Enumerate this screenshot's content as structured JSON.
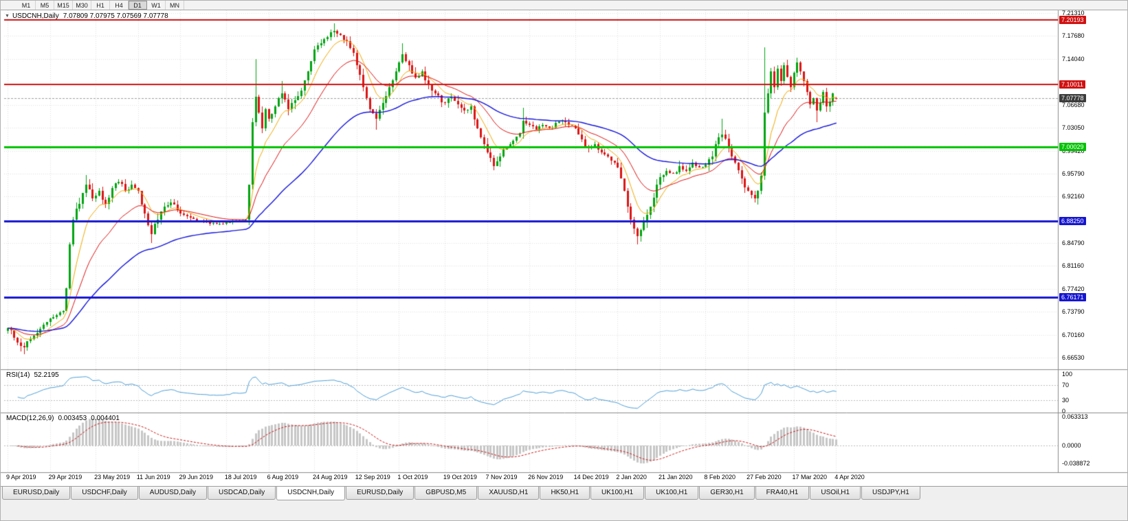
{
  "toolbar": {
    "timeframes": [
      {
        "label": "M1",
        "active": false
      },
      {
        "label": "M5",
        "active": false
      },
      {
        "label": "M15",
        "active": false
      },
      {
        "label": "M30",
        "active": false
      },
      {
        "label": "H1",
        "active": false
      },
      {
        "label": "H4",
        "active": false
      },
      {
        "label": "D1",
        "active": true
      },
      {
        "label": "W1",
        "active": false
      },
      {
        "label": "MN",
        "active": false
      }
    ]
  },
  "chart": {
    "title": {
      "symbol": "USDCNH,Daily",
      "ohlc": "7.07809 7.07975 7.07569 7.07778"
    },
    "price_axis": {
      "labels": [
        {
          "text": "7.21310",
          "price": 7.2131
        },
        {
          "text": "7.17680",
          "price": 7.1768
        },
        {
          "text": "7.14040",
          "price": 7.1404
        },
        {
          "text": "7.06680",
          "price": 7.0668
        },
        {
          "text": "7.03050",
          "price": 7.0305
        },
        {
          "text": "6.99420",
          "price": 6.9942
        },
        {
          "text": "6.95790",
          "price": 6.9579
        },
        {
          "text": "6.92160",
          "price": 6.9216
        },
        {
          "text": "6.84790",
          "price": 6.8479
        },
        {
          "text": "6.81160",
          "price": 6.8116
        },
        {
          "text": "6.77420",
          "price": 6.7742
        },
        {
          "text": "6.73790",
          "price": 6.7379
        },
        {
          "text": "6.70160",
          "price": 6.7016
        },
        {
          "text": "6.66530",
          "price": 6.6653
        }
      ]
    },
    "hlines": [
      {
        "label": "7.20193",
        "price": 7.20193,
        "color": "#d01111",
        "width": 2
      },
      {
        "label": "7.10011",
        "price": 7.10011,
        "color": "#d01111",
        "width": 2
      },
      {
        "label": "7.00029",
        "price": 7.00029,
        "color": "#00c300",
        "width": 3
      },
      {
        "label": "6.88250",
        "price": 6.8825,
        "color": "#1515d0",
        "width": 3
      },
      {
        "label": "6.76171",
        "price": 6.76171,
        "color": "#1515d0",
        "width": 3
      }
    ],
    "current_price": {
      "label": "7.07778",
      "price": 7.07778
    },
    "date_axis": {
      "labels": [
        {
          "text": "9 Apr 2019",
          "bar": 0
        },
        {
          "text": "29 Apr 2019",
          "bar": 13
        },
        {
          "text": "23 May 2019",
          "bar": 27
        },
        {
          "text": "11 Jun 2019",
          "bar": 40
        },
        {
          "text": "29 Jun 2019",
          "bar": 53
        },
        {
          "text": "18 Jul 2019",
          "bar": 67
        },
        {
          "text": "6 Aug 2019",
          "bar": 80
        },
        {
          "text": "24 Aug 2019",
          "bar": 94
        },
        {
          "text": "12 Sep 2019",
          "bar": 107
        },
        {
          "text": "1 Oct 2019",
          "bar": 120
        },
        {
          "text": "19 Oct 2019",
          "bar": 134
        },
        {
          "text": "7 Nov 2019",
          "bar": 147
        },
        {
          "text": "26 Nov 2019",
          "bar": 160
        },
        {
          "text": "14 Dec 2019",
          "bar": 174
        },
        {
          "text": "2 Jan 2020",
          "bar": 187
        },
        {
          "text": "21 Jan 2020",
          "bar": 200
        },
        {
          "text": "8 Feb 2020",
          "bar": 214
        },
        {
          "text": "27 Feb 2020",
          "bar": 227
        },
        {
          "text": "17 Mar 2020",
          "bar": 241
        },
        {
          "text": "4 Apr 2020",
          "bar": 254
        }
      ]
    },
    "colors": {
      "bull": "#00a410",
      "bear": "#dc1414",
      "ema_fast": "#f2a900",
      "ema_mid": "#e01010",
      "ema_slow": "#1414dd",
      "grid": "#dfdfdf",
      "separator": "#8a8a8a",
      "bid_line": "#a0a0a0",
      "bid_badge": "#3c3c3c"
    }
  },
  "rsi": {
    "label": "RSI(14)",
    "value": "52.2195",
    "color": "#4c9fd8",
    "levels": [
      70,
      30
    ],
    "axis": [
      {
        "text": "100",
        "value": 100
      },
      {
        "text": "70",
        "value": 70
      },
      {
        "text": "30",
        "value": 30
      },
      {
        "text": "0",
        "value": 0
      }
    ]
  },
  "macd": {
    "label": "MACD(12,26,9)",
    "main_value": "0.003453",
    "signal_value": "0.004401",
    "histogram_color": "#c6c6c6",
    "signal_color": "#cc1111",
    "axis": [
      {
        "text": "0.063313",
        "value": 0.063313
      },
      {
        "text": "0.0000",
        "value": 0
      },
      {
        "text": "-0.038872",
        "value": -0.038872
      }
    ]
  },
  "tabs": {
    "items": [
      {
        "label": "EURUSD,Daily",
        "active": false
      },
      {
        "label": "USDCHF,Daily",
        "active": false
      },
      {
        "label": "AUDUSD,Daily",
        "active": false
      },
      {
        "label": "USDCAD,Daily",
        "active": false
      },
      {
        "label": "USDCNH,Daily",
        "active": true
      },
      {
        "label": "EURUSD,Daily",
        "active": false
      },
      {
        "label": "GBPUSD,M5",
        "active": false
      },
      {
        "label": "XAUUSD,H1",
        "active": false
      },
      {
        "label": "HK50,H1",
        "active": false
      },
      {
        "label": "UK100,H1",
        "active": false
      },
      {
        "label": "UK100,H1",
        "active": false
      },
      {
        "label": "GER30,H1",
        "active": false
      },
      {
        "label": "FRA40,H1",
        "active": false
      },
      {
        "label": "USOil,H1",
        "active": false
      },
      {
        "label": "USDJPY,H1",
        "active": false
      }
    ]
  },
  "chart_data": {
    "type": "candlestick",
    "symbol": "USDCNH",
    "timeframe": "Daily",
    "bar_count": 255,
    "price_range_visible": [
      6.6653,
      7.2131
    ],
    "last_bar": {
      "open": 7.07809,
      "high": 7.07975,
      "low": 7.07569,
      "close": 7.07778
    },
    "overlay_emas": [
      8,
      20,
      55
    ],
    "rsi_period": 14,
    "rsi_last": 52.2195,
    "macd_params": [
      12,
      26,
      9
    ],
    "macd_last_main": 0.003453,
    "macd_last_signal": 0.004401,
    "close_anchors": [
      [
        0,
        6.712
      ],
      [
        2,
        6.697
      ],
      [
        5,
        6.682
      ],
      [
        8,
        6.7
      ],
      [
        11,
        6.718
      ],
      [
        13,
        6.728
      ],
      [
        15,
        6.733
      ],
      [
        17,
        6.74
      ],
      [
        18,
        6.775
      ],
      [
        19,
        6.845
      ],
      [
        20,
        6.885
      ],
      [
        22,
        6.91
      ],
      [
        24,
        6.94
      ],
      [
        26,
        6.918
      ],
      [
        28,
        6.93
      ],
      [
        30,
        6.91
      ],
      [
        32,
        6.935
      ],
      [
        34,
        6.945
      ],
      [
        36,
        6.93
      ],
      [
        38,
        6.94
      ],
      [
        40,
        6.93
      ],
      [
        42,
        6.895
      ],
      [
        44,
        6.862
      ],
      [
        46,
        6.885
      ],
      [
        48,
        6.905
      ],
      [
        50,
        6.912
      ],
      [
        53,
        6.895
      ],
      [
        56,
        6.888
      ],
      [
        60,
        6.882
      ],
      [
        64,
        6.878
      ],
      [
        67,
        6.88
      ],
      [
        70,
        6.884
      ],
      [
        73,
        6.885
      ],
      [
        74,
        6.94
      ],
      [
        75,
        7.04
      ],
      [
        76,
        7.08
      ],
      [
        77,
        7.055
      ],
      [
        78,
        7.03
      ],
      [
        79,
        7.06
      ],
      [
        80,
        7.045
      ],
      [
        82,
        7.065
      ],
      [
        84,
        7.085
      ],
      [
        86,
        7.06
      ],
      [
        88,
        7.075
      ],
      [
        90,
        7.09
      ],
      [
        92,
        7.12
      ],
      [
        94,
        7.155
      ],
      [
        96,
        7.165
      ],
      [
        98,
        7.175
      ],
      [
        100,
        7.185
      ],
      [
        102,
        7.178
      ],
      [
        104,
        7.168
      ],
      [
        106,
        7.15
      ],
      [
        107,
        7.13
      ],
      [
        109,
        7.095
      ],
      [
        111,
        7.06
      ],
      [
        113,
        7.045
      ],
      [
        115,
        7.07
      ],
      [
        117,
        7.095
      ],
      [
        119,
        7.12
      ],
      [
        120,
        7.135
      ],
      [
        121,
        7.148
      ],
      [
        123,
        7.13
      ],
      [
        125,
        7.11
      ],
      [
        127,
        7.12
      ],
      [
        129,
        7.098
      ],
      [
        131,
        7.085
      ],
      [
        134,
        7.07
      ],
      [
        136,
        7.08
      ],
      [
        138,
        7.068
      ],
      [
        140,
        7.058
      ],
      [
        142,
        7.065
      ],
      [
        144,
        7.03
      ],
      [
        146,
        7.005
      ],
      [
        147,
        6.992
      ],
      [
        149,
        6.97
      ],
      [
        151,
        6.985
      ],
      [
        153,
        7.0
      ],
      [
        155,
        7.01
      ],
      [
        157,
        7.022
      ],
      [
        158,
        7.042
      ],
      [
        160,
        7.035
      ],
      [
        162,
        7.028
      ],
      [
        164,
        7.035
      ],
      [
        166,
        7.03
      ],
      [
        168,
        7.038
      ],
      [
        170,
        7.042
      ],
      [
        172,
        7.035
      ],
      [
        174,
        7.03
      ],
      [
        176,
        7.012
      ],
      [
        178,
        6.998
      ],
      [
        180,
        7.005
      ],
      [
        182,
        6.992
      ],
      [
        184,
        6.985
      ],
      [
        186,
        6.975
      ],
      [
        187,
        6.968
      ],
      [
        188,
        6.95
      ],
      [
        189,
        6.93
      ],
      [
        190,
        6.905
      ],
      [
        191,
        6.885
      ],
      [
        192,
        6.87
      ],
      [
        193,
        6.858
      ],
      [
        194,
        6.868
      ],
      [
        195,
        6.88
      ],
      [
        196,
        6.892
      ],
      [
        197,
        6.905
      ],
      [
        198,
        6.92
      ],
      [
        199,
        6.94
      ],
      [
        200,
        6.952
      ],
      [
        202,
        6.962
      ],
      [
        204,
        6.958
      ],
      [
        206,
        6.97
      ],
      [
        208,
        6.962
      ],
      [
        210,
        6.975
      ],
      [
        212,
        6.968
      ],
      [
        214,
        6.972
      ],
      [
        216,
        6.985
      ],
      [
        217,
        7.005
      ],
      [
        219,
        7.02
      ],
      [
        221,
        7.0
      ],
      [
        223,
        6.975
      ],
      [
        225,
        6.95
      ],
      [
        227,
        6.93
      ],
      [
        229,
        6.918
      ],
      [
        230,
        6.93
      ],
      [
        231,
        6.955
      ],
      [
        232,
        7.055
      ],
      [
        233,
        7.085
      ],
      [
        234,
        7.12
      ],
      [
        235,
        7.095
      ],
      [
        236,
        7.125
      ],
      [
        237,
        7.105
      ],
      [
        238,
        7.13
      ],
      [
        239,
        7.112
      ],
      [
        240,
        7.095
      ],
      [
        241,
        7.118
      ],
      [
        242,
        7.135
      ],
      [
        243,
        7.12
      ],
      [
        244,
        7.105
      ],
      [
        245,
        7.088
      ],
      [
        246,
        7.068
      ],
      [
        247,
        7.078
      ],
      [
        248,
        7.058
      ],
      [
        249,
        7.07
      ],
      [
        250,
        7.088
      ],
      [
        251,
        7.065
      ],
      [
        252,
        7.072
      ],
      [
        253,
        7.085
      ],
      [
        254,
        7.078
      ]
    ],
    "wick_overrides": [
      {
        "i": 5,
        "low": 6.6705
      },
      {
        "i": 24,
        "high": 6.956
      },
      {
        "i": 44,
        "low": 6.848
      },
      {
        "i": 76,
        "high": 7.1397
      },
      {
        "i": 84,
        "high": 7.105
      },
      {
        "i": 100,
        "high": 7.1965
      },
      {
        "i": 113,
        "low": 7.028
      },
      {
        "i": 121,
        "high": 7.165
      },
      {
        "i": 149,
        "low": 6.963
      },
      {
        "i": 158,
        "high": 7.062
      },
      {
        "i": 193,
        "low": 6.845
      },
      {
        "i": 219,
        "high": 7.045
      },
      {
        "i": 232,
        "high": 7.158,
        "low": 6.948
      },
      {
        "i": 248,
        "low": 7.04
      }
    ]
  }
}
